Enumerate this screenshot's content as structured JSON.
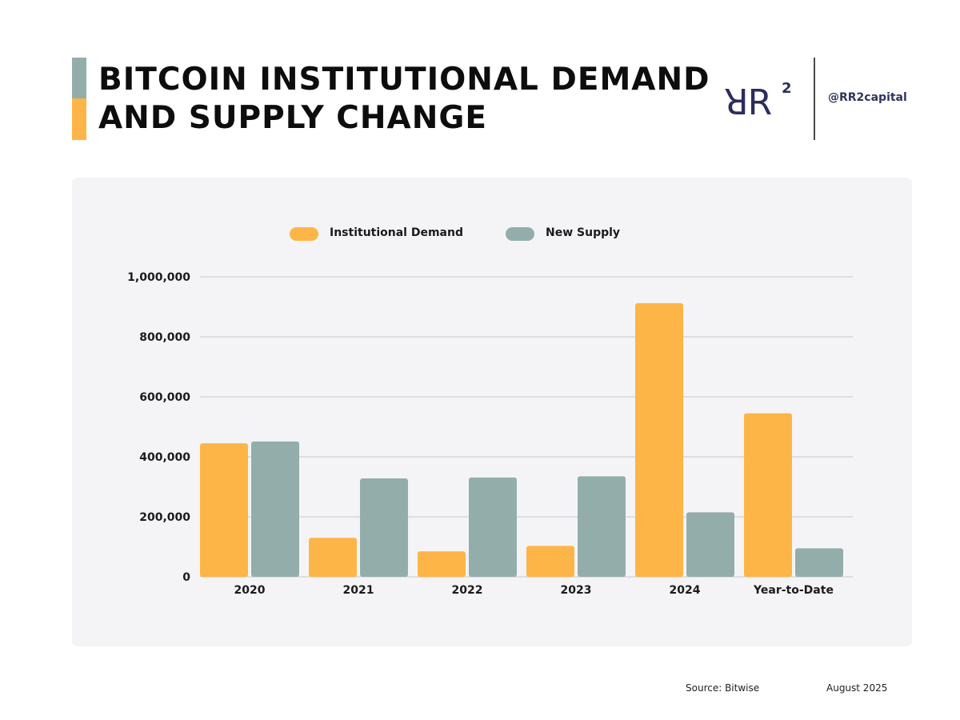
{
  "header": {
    "title_line1": "BITCOIN INSTITUTIONAL DEMAND",
    "title_line2": "AND SUPPLY CHANGE",
    "accent_top_color": "#93ADAB",
    "accent_bottom_color": "#FDB547",
    "logo_text": "ꓤR",
    "logo_superscript": "2",
    "handle": "@RR2capital"
  },
  "chart_data": {
    "type": "bar",
    "categories": [
      "2020",
      "2021",
      "2022",
      "2023",
      "2024",
      "Year-to-Date"
    ],
    "series": [
      {
        "name": "Institutional Demand",
        "color": "#FDB547",
        "values": [
          445000,
          130000,
          85000,
          103000,
          912000,
          545000
        ]
      },
      {
        "name": "New Supply",
        "color": "#93ADAB",
        "values": [
          451000,
          328000,
          331000,
          335000,
          215000,
          95000
        ]
      }
    ],
    "ylim": [
      0,
      1000000
    ],
    "yticks": [
      0,
      200000,
      400000,
      600000,
      800000,
      1000000
    ],
    "ytick_labels": [
      "0",
      "200,000",
      "400,000",
      "600,000",
      "800,000",
      "1,000,000"
    ],
    "grid": true,
    "legend_position": "top-center",
    "title": "",
    "xlabel": "",
    "ylabel": ""
  },
  "footer": {
    "source": "Source: Bitwise",
    "date": "August 2025"
  }
}
